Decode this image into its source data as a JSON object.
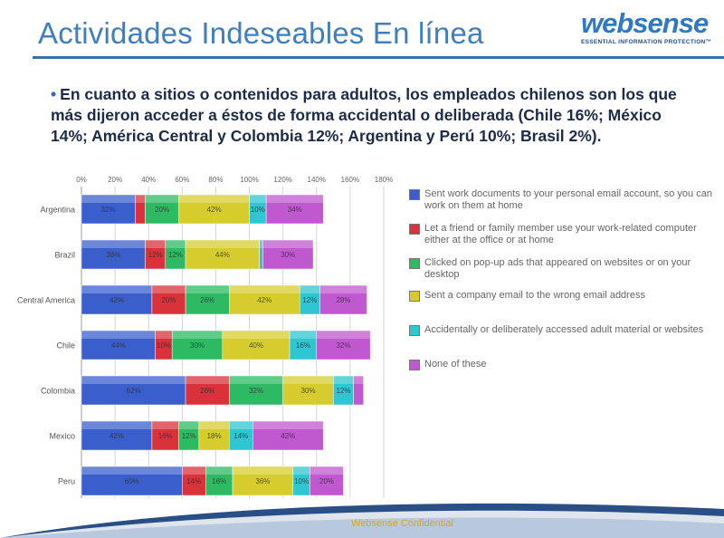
{
  "header": {
    "title": "Actividades Indeseables En línea"
  },
  "logo": {
    "word": "websense",
    "tagline": "ESSENTIAL INFORMATION PROTECTION™"
  },
  "bullet": {
    "marker": "•",
    "text": "En cuanto a sitios o contenidos para adultos, los empleados chilenos son los que más dijeron acceder a éstos de forma accidental o deliberada (Chile 16%; México 14%; América Central y Colombia 12%; Argentina y Perú 10%; Brasil 2%)."
  },
  "colors": {
    "series": [
      "#3a5fcd",
      "#d9323a",
      "#2dba63",
      "#d6cc2e",
      "#2ec6d0",
      "#c058cf"
    ]
  },
  "chart_data": {
    "type": "bar",
    "orientation": "horizontal",
    "stacked": true,
    "xlim": [
      0,
      180
    ],
    "x_ticks": [
      "0%",
      "20%",
      "40%",
      "60%",
      "80%",
      "100%",
      "120%",
      "140%",
      "160%",
      "180%"
    ],
    "categories": [
      "Argentina",
      "Brazil",
      "Central America",
      "Chile",
      "Colombia",
      "Mexico",
      "Peru"
    ],
    "series": [
      {
        "name": "Sent work documents to your personal email account, so you can work on them at home",
        "values": [
          32,
          38,
          42,
          44,
          62,
          42,
          60
        ],
        "labels": [
          "32%",
          "38%",
          "42%",
          "44%",
          "62%",
          "42%",
          "60%"
        ]
      },
      {
        "name": "Let a friend or family member use your work-related computer either at the office or at home",
        "values": [
          6,
          12,
          20,
          10,
          26,
          16,
          14
        ],
        "labels": [
          "",
          "12%",
          "20%",
          "10%",
          "26%",
          "16%",
          "14%"
        ]
      },
      {
        "name": "Clicked on pop-up ads that appeared on websites or on your desktop",
        "values": [
          20,
          12,
          26,
          30,
          32,
          12,
          16
        ],
        "labels": [
          "20%",
          "12%",
          "26%",
          "30%",
          "32%",
          "12%",
          "16%"
        ]
      },
      {
        "name": "Sent a company email to the wrong email address",
        "values": [
          42,
          44,
          42,
          40,
          30,
          18,
          36
        ],
        "labels": [
          "42%",
          "44%",
          "42%",
          "40%",
          "30%",
          "18%",
          "36%"
        ]
      },
      {
        "name": "Accidentally or deliberately accessed adult material or websites",
        "values": [
          10,
          2,
          12,
          16,
          12,
          14,
          10
        ],
        "labels": [
          "10%",
          "",
          "12%",
          "16%",
          "12%",
          "14%",
          "10%"
        ]
      },
      {
        "name": "None of these",
        "values": [
          34,
          30,
          28,
          32,
          6,
          42,
          20
        ],
        "labels": [
          "34%",
          "30%",
          "28%",
          "32%",
          "",
          "42%",
          "20%"
        ]
      }
    ]
  },
  "footer": {
    "text": "Websense Confidential"
  }
}
